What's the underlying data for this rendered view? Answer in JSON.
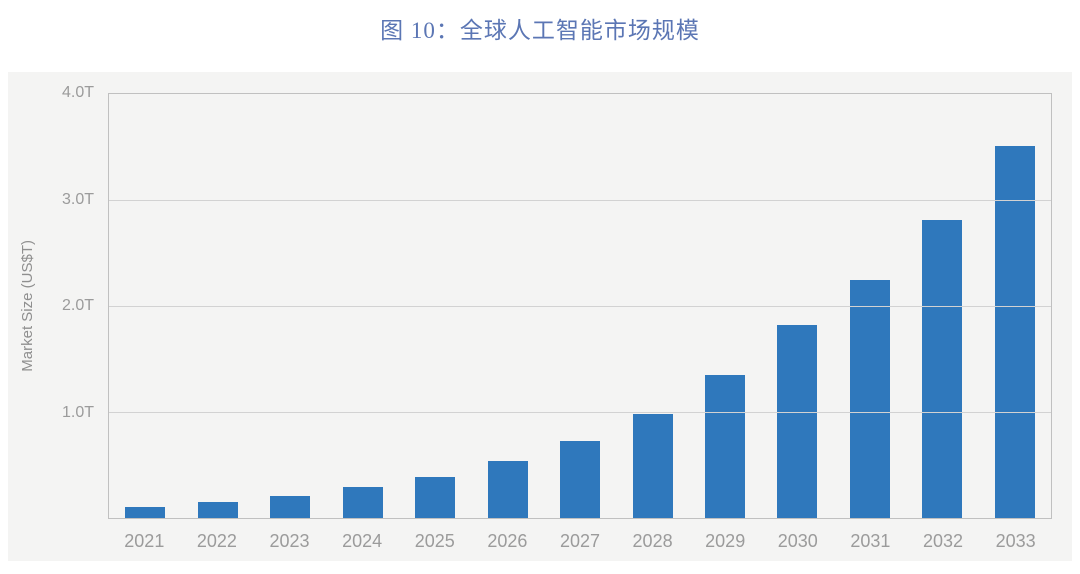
{
  "figure": {
    "title": "图 10：全球人工智能市场规模"
  },
  "colors": {
    "title_text": "#5b76b4",
    "bar": "#2f78bc",
    "axis_text": "#9b9b9b",
    "y_axis_title_text": "#8f8f8f",
    "grid_line": "#d2d2d2",
    "frame_border": "#c0c0c0",
    "panel_bg": "#f4f4f3",
    "page_bg": "#ffffff"
  },
  "chart_data": {
    "type": "bar",
    "title": "图 10：全球人工智能市场规模",
    "categories": [
      "2021",
      "2022",
      "2023",
      "2024",
      "2025",
      "2026",
      "2027",
      "2028",
      "2029",
      "2030",
      "2031",
      "2032",
      "2033"
    ],
    "values": [
      0.1,
      0.15,
      0.21,
      0.29,
      0.39,
      0.54,
      0.73,
      0.98,
      1.35,
      1.82,
      2.25,
      2.81,
      3.51
    ],
    "xlabel": "",
    "ylabel": "Market Size (US$T)",
    "ylim": [
      0,
      4.0
    ],
    "yticks": [
      {
        "value": 4.0,
        "label": "4.0T"
      },
      {
        "value": 3.0,
        "label": "3.0T"
      },
      {
        "value": 2.0,
        "label": "2.0T"
      },
      {
        "value": 1.0,
        "label": "1.0T"
      }
    ],
    "grid": "horizontal gridlines at 1.0T intervals, full rectangular frame",
    "legend": "none",
    "bar_color": "#2f78bc"
  }
}
